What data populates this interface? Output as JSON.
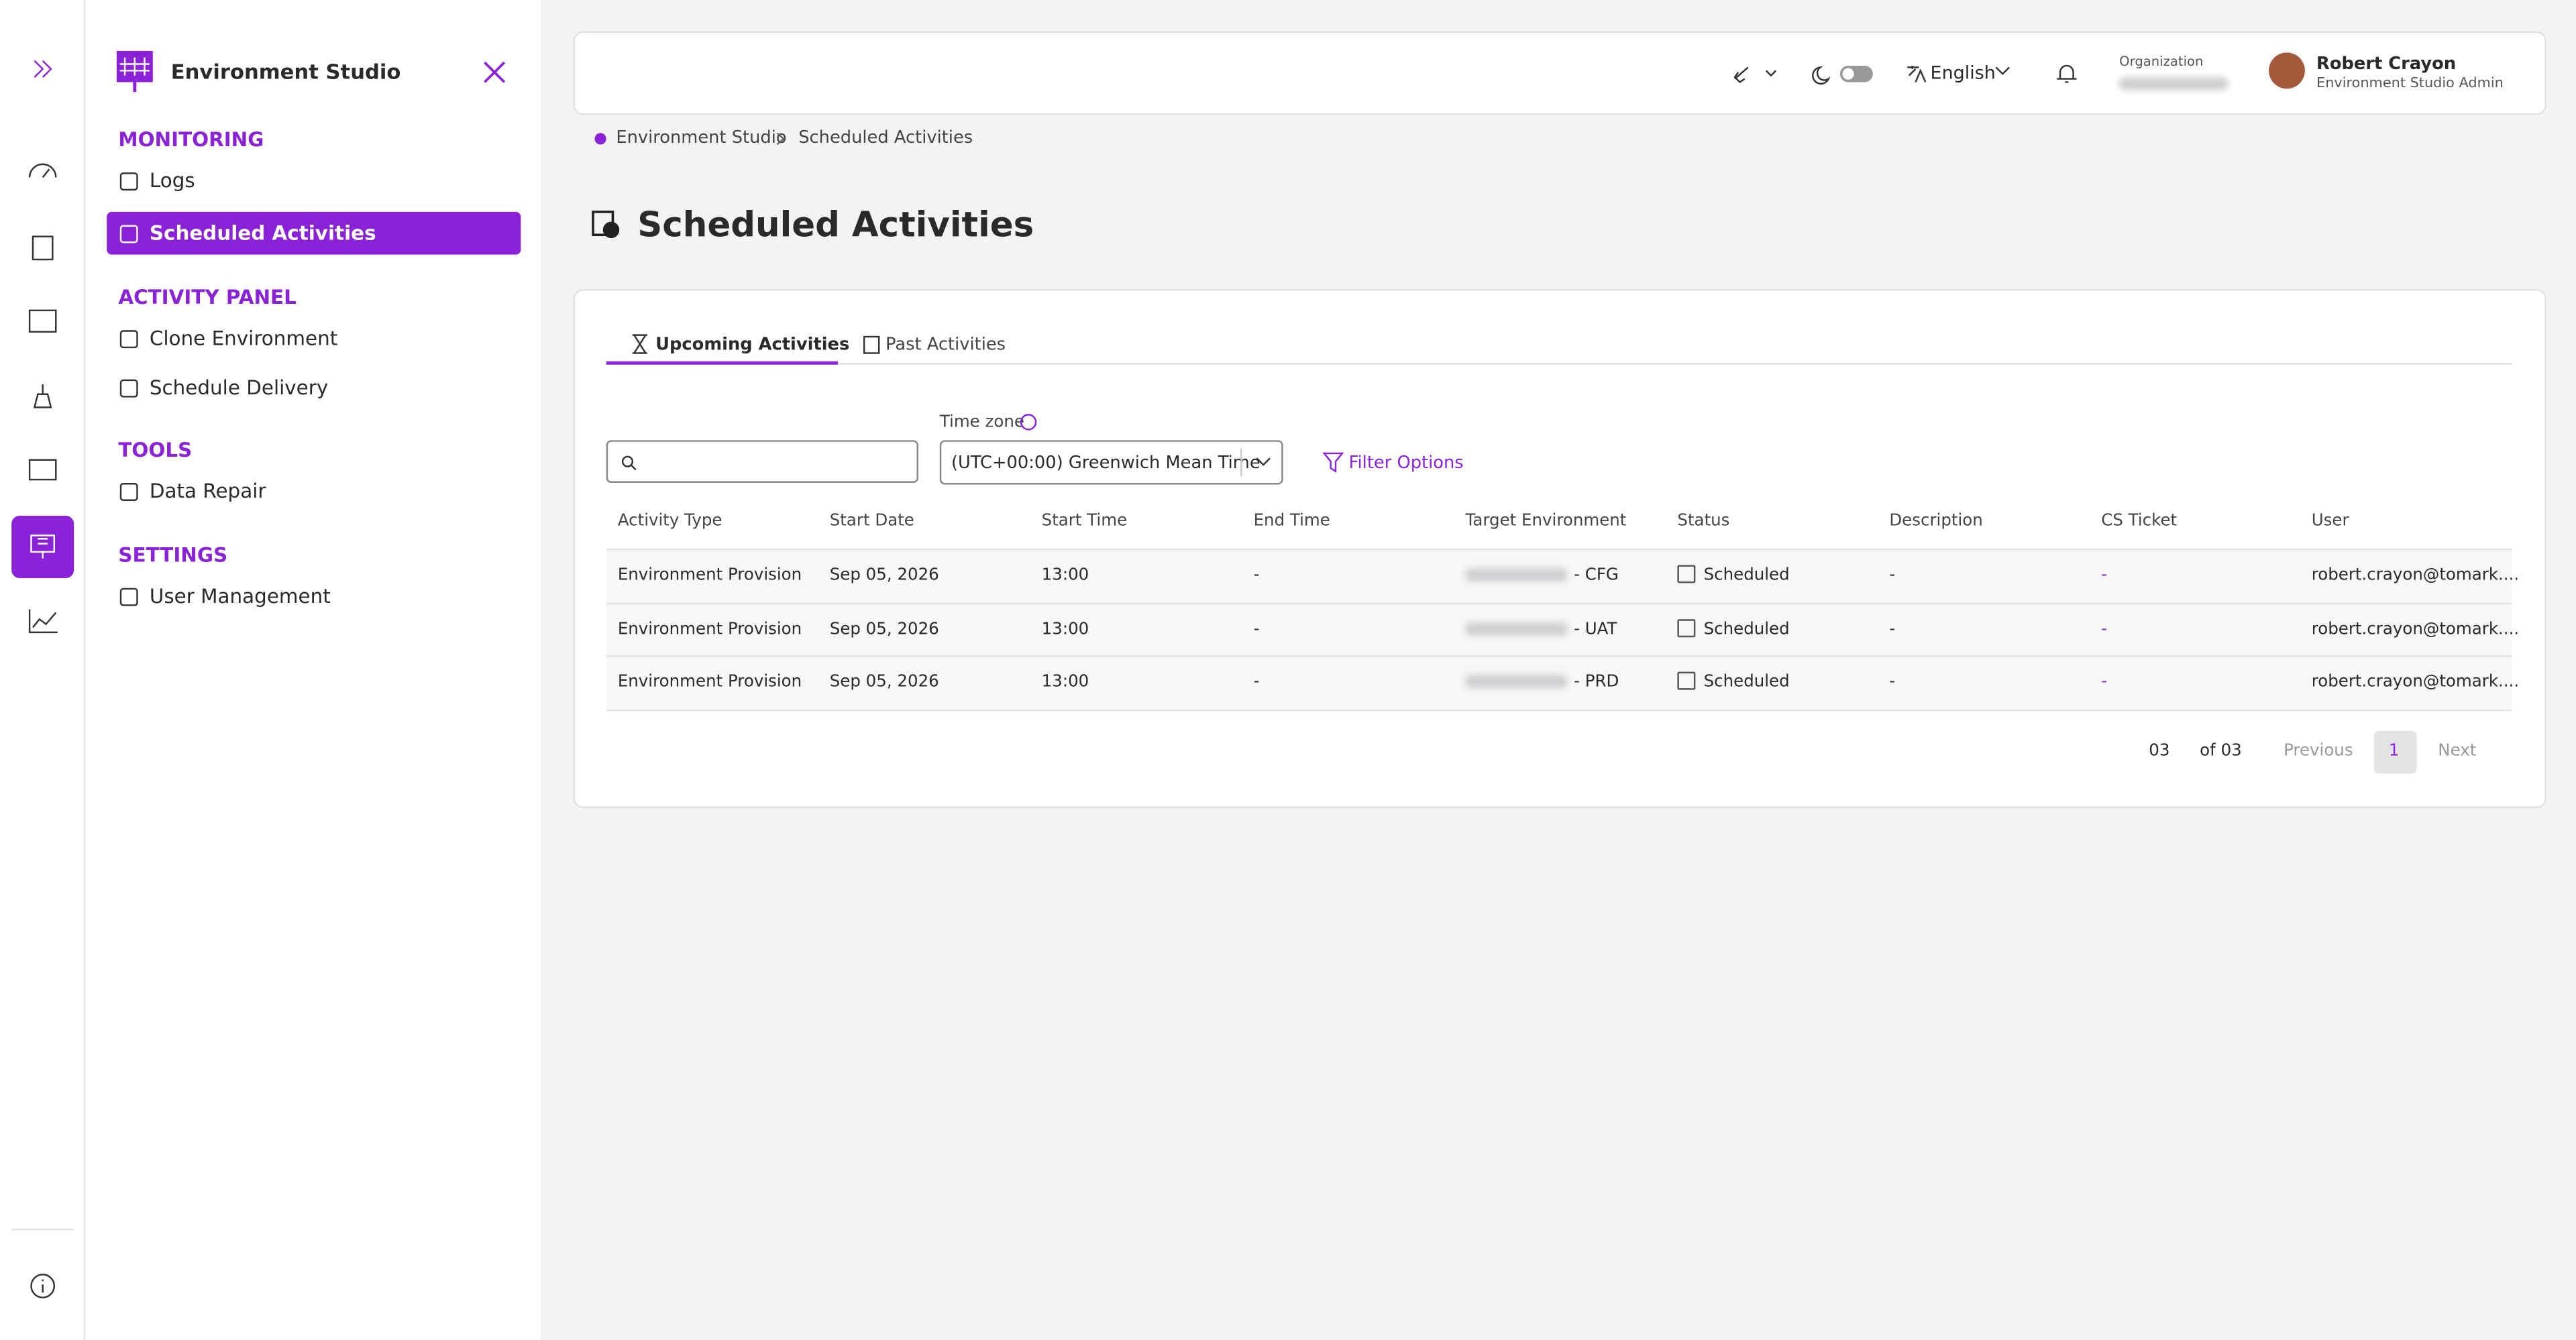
{
  "sidebar": {
    "title": "Environment Studio",
    "sections": [
      {
        "heading": "MONITORING",
        "items": [
          "Logs",
          "Scheduled Activities"
        ]
      },
      {
        "heading": "ACTIVITY PANEL",
        "items": [
          "Clone Environment",
          "Schedule Delivery"
        ]
      },
      {
        "heading": "TOOLS",
        "items": [
          "Data Repair"
        ]
      },
      {
        "heading": "SETTINGS",
        "items": [
          "User Management"
        ]
      }
    ]
  },
  "header": {
    "language": "English",
    "org_label": "Organization",
    "user_name": "Robert Crayon",
    "user_role": "Environment Studio Admin"
  },
  "breadcrumb": [
    "Environment Studio",
    "Scheduled Activities"
  ],
  "page_title": "Scheduled Activities",
  "tabs": [
    "Upcoming Activities",
    "Past Activities"
  ],
  "timezone_label": "Time zone",
  "timezone": "(UTC+00:00) Greenwich Mean Time",
  "filter": "Filter Options",
  "table": {
    "columns": [
      "Activity Type",
      "Start Date",
      "Start Time",
      "End Time",
      "Target Environment",
      "Status",
      "Description",
      "CS Ticket",
      "User"
    ],
    "rows": [
      [
        "Environment Provision",
        "Sep 05, 2026",
        "13:00",
        "-",
        "- CFG",
        "Scheduled",
        "-",
        "-",
        "robert.crayon@tomark...."
      ],
      [
        "Environment Provision",
        "Sep 05, 2026",
        "13:00",
        "-",
        "- UAT",
        "Scheduled",
        "-",
        "-",
        "robert.crayon@tomark...."
      ],
      [
        "Environment Provision",
        "Sep 05, 2026",
        "13:00",
        "-",
        "- PRD",
        "Scheduled",
        "-",
        "-",
        "robert.crayon@tomark...."
      ]
    ]
  },
  "pagination": {
    "page_size": "03",
    "of": "of 03",
    "previous": "Previous",
    "page": "1",
    "next": "Next"
  }
}
